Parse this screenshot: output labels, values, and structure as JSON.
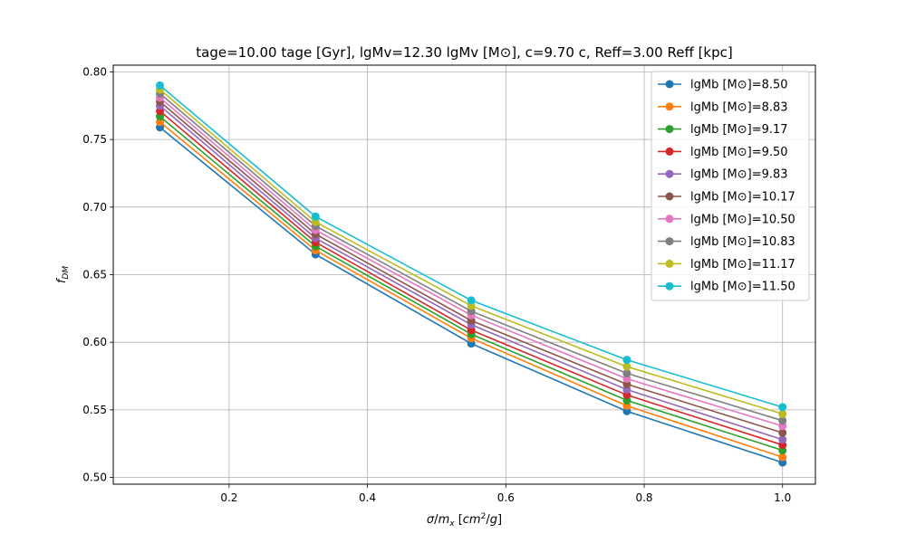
{
  "chart_data": {
    "type": "line",
    "title": "tage=10.00 tage [Gyr], lgMv=12.30 lgMv [M⊙], c=9.70 c, Reff=3.00 Reff [kpc]",
    "xlabel": "σ/mₓ [cm²/g]",
    "ylabel": "f_DM",
    "xlim": [
      0.0325,
      1.0475
    ],
    "ylim": [
      0.495,
      0.805
    ],
    "xticks": [
      0.2,
      0.4,
      0.6,
      0.8,
      1.0
    ],
    "xtick_labels": [
      "0.2",
      "0.4",
      "0.6",
      "0.8",
      "1.0"
    ],
    "yticks": [
      0.5,
      0.55,
      0.6,
      0.65,
      0.7,
      0.75,
      0.8
    ],
    "ytick_labels": [
      "0.50",
      "0.55",
      "0.60",
      "0.65",
      "0.70",
      "0.75",
      "0.80"
    ],
    "grid": true,
    "legend_position": "top-right",
    "x": [
      0.1,
      0.325,
      0.55,
      0.775,
      1.0
    ],
    "series": [
      {
        "name": "lgMb [M⊙]=8.50",
        "color": "#1f77b4",
        "values": [
          0.759,
          0.665,
          0.599,
          0.549,
          0.511
        ]
      },
      {
        "name": "lgMb [M⊙]=8.83",
        "color": "#ff7f0e",
        "values": [
          0.763,
          0.668,
          0.603,
          0.553,
          0.515
        ]
      },
      {
        "name": "lgMb [M⊙]=9.17",
        "color": "#2ca02c",
        "values": [
          0.767,
          0.671,
          0.606,
          0.557,
          0.52
        ]
      },
      {
        "name": "lgMb [M⊙]=9.50",
        "color": "#d62728",
        "values": [
          0.771,
          0.674,
          0.609,
          0.561,
          0.524
        ]
      },
      {
        "name": "lgMb [M⊙]=9.83",
        "color": "#9467bd",
        "values": [
          0.775,
          0.677,
          0.613,
          0.565,
          0.528
        ]
      },
      {
        "name": "lgMb [M⊙]=10.17",
        "color": "#8c564b",
        "values": [
          0.778,
          0.68,
          0.616,
          0.569,
          0.533
        ]
      },
      {
        "name": "lgMb [M⊙]=10.50",
        "color": "#e377c2",
        "values": [
          0.781,
          0.683,
          0.62,
          0.573,
          0.538
        ]
      },
      {
        "name": "lgMb [M⊙]=10.83",
        "color": "#7f7f7f",
        "values": [
          0.784,
          0.686,
          0.623,
          0.577,
          0.542
        ]
      },
      {
        "name": "lgMb [M⊙]=11.17",
        "color": "#bcbd22",
        "values": [
          0.787,
          0.689,
          0.627,
          0.582,
          0.547
        ]
      },
      {
        "name": "lgMb [M⊙]=11.50",
        "color": "#17becf",
        "values": [
          0.79,
          0.693,
          0.631,
          0.587,
          0.552
        ]
      }
    ]
  }
}
